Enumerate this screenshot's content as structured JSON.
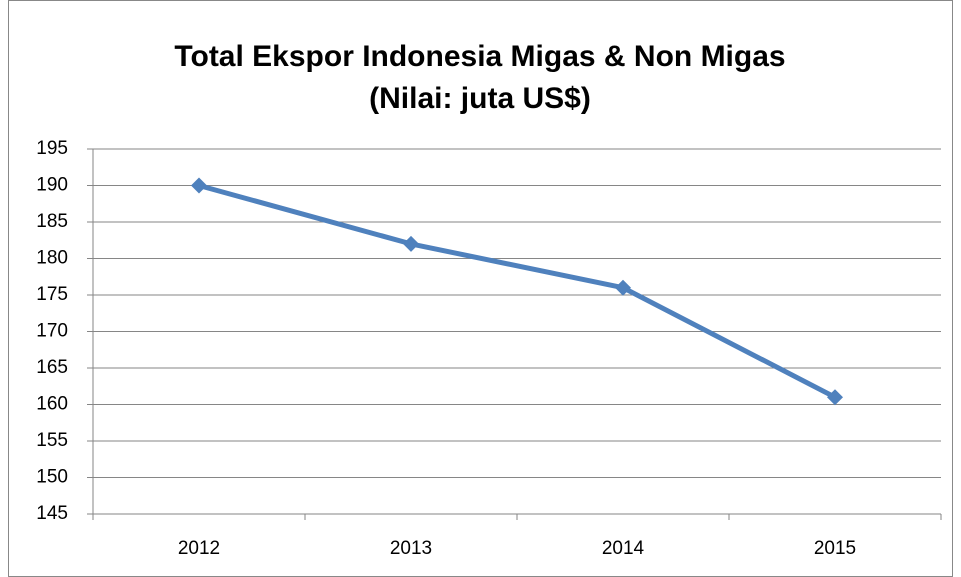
{
  "chart_data": {
    "type": "line",
    "title": "Total Ekspor Indonesia Migas & Non Migas",
    "subtitle": "(Nilai: juta US$)",
    "categories": [
      "2012",
      "2013",
      "2014",
      "2015"
    ],
    "series": [
      {
        "name": "Total Ekspor",
        "color": "#4f81bd",
        "values": [
          190,
          182,
          176,
          161
        ]
      }
    ],
    "ylim": [
      145,
      195
    ],
    "yticks": [
      145,
      150,
      155,
      160,
      165,
      170,
      175,
      180,
      185,
      190,
      195
    ],
    "grid": true
  }
}
